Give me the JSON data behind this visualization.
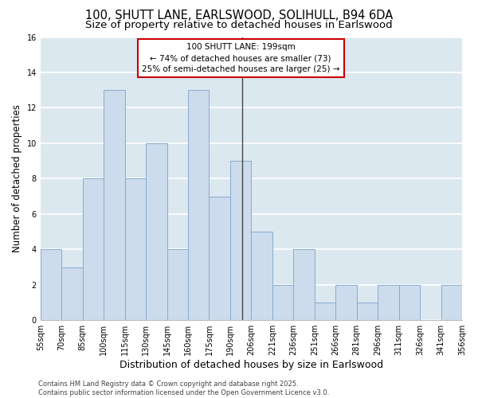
{
  "title": "100, SHUTT LANE, EARLSWOOD, SOLIHULL, B94 6DA",
  "subtitle": "Size of property relative to detached houses in Earlswood",
  "xlabel": "Distribution of detached houses by size in Earlswood",
  "ylabel": "Number of detached properties",
  "bar_values": [
    4,
    3,
    8,
    13,
    8,
    10,
    4,
    13,
    7,
    9,
    5,
    2,
    4,
    1,
    2,
    1,
    2,
    2,
    0,
    2
  ],
  "bin_labels": [
    "55sqm",
    "70sqm",
    "85sqm",
    "100sqm",
    "115sqm",
    "130sqm",
    "145sqm",
    "160sqm",
    "175sqm",
    "190sqm",
    "206sqm",
    "221sqm",
    "236sqm",
    "251sqm",
    "266sqm",
    "281sqm",
    "296sqm",
    "311sqm",
    "326sqm",
    "341sqm",
    "356sqm"
  ],
  "bar_color": "#ccdcec",
  "bar_edge_color": "#88aacc",
  "fig_bg_color": "#ffffff",
  "ax_bg_color": "#dce8f0",
  "grid_color": "#ffffff",
  "annotation_line1": "100 SHUTT LANE: 199sqm",
  "annotation_line2": "← 74% of detached houses are smaller (73)",
  "annotation_line3": "25% of semi-detached houses are larger (25) →",
  "annotation_box_edge": "#cc0000",
  "annotation_box_face": "#ffffff",
  "vline_color": "#444444",
  "ylim": [
    0,
    16
  ],
  "yticks": [
    0,
    2,
    4,
    6,
    8,
    10,
    12,
    14,
    16
  ],
  "footer_text": "Contains HM Land Registry data © Crown copyright and database right 2025.\nContains public sector information licensed under the Open Government Licence v3.0.",
  "title_fontsize": 10.5,
  "subtitle_fontsize": 9.5,
  "xlabel_fontsize": 9,
  "ylabel_fontsize": 8.5,
  "tick_fontsize": 7,
  "annotation_fontsize": 7.5,
  "footer_fontsize": 6
}
